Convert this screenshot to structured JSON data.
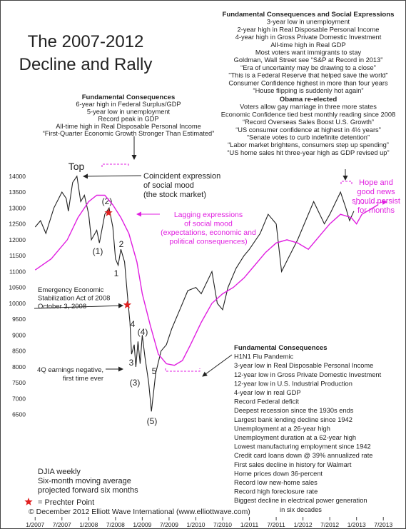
{
  "chart_data": {
    "type": "line",
    "title": [
      "The 2007-2012",
      "Decline and Rally"
    ],
    "xlim": [
      2006.85,
      2013.87
    ],
    "xticks": [
      {
        "value": 2007,
        "label": "1/2007"
      },
      {
        "value": 2007.5,
        "label": "7/2007"
      },
      {
        "value": 2008,
        "label": "1/2008"
      },
      {
        "value": 2008.5,
        "label": "7/2008"
      },
      {
        "value": 2009,
        "label": "1/2009"
      },
      {
        "value": 2009.5,
        "label": "7/2009"
      },
      {
        "value": 2010,
        "label": "1/2010"
      },
      {
        "value": 2010.5,
        "label": "7/2010"
      },
      {
        "value": 2011,
        "label": "1/2011"
      },
      {
        "value": 2011.5,
        "label": "7/2011"
      },
      {
        "value": 2012,
        "label": "1/2012"
      },
      {
        "value": 2012.5,
        "label": "7/2012"
      },
      {
        "value": 2013,
        "label": "1/2013"
      },
      {
        "value": 2013.5,
        "label": "7/2013"
      }
    ],
    "ylim": [
      6000,
      14400
    ],
    "yticks": [
      6500,
      7000,
      7500,
      8000,
      8500,
      9000,
      9500,
      10000,
      10500,
      11000,
      11500,
      12000,
      12500,
      13000,
      13500,
      14000
    ],
    "series": [
      {
        "name": "DJIA weekly",
        "color": "#222222",
        "x": [
          2007.0,
          2007.1,
          2007.2,
          2007.35,
          2007.5,
          2007.58,
          2007.62,
          2007.7,
          2007.78,
          2007.85,
          2007.92,
          2008.0,
          2008.05,
          2008.15,
          2008.2,
          2008.3,
          2008.38,
          2008.45,
          2008.5,
          2008.55,
          2008.6,
          2008.67,
          2008.72,
          2008.77,
          2008.8,
          2008.85,
          2008.88,
          2008.92,
          2008.96,
          2009.0,
          2009.05,
          2009.12,
          2009.17,
          2009.25,
          2009.35,
          2009.45,
          2009.55,
          2009.7,
          2009.85,
          2010.0,
          2010.1,
          2010.3,
          2010.4,
          2010.5,
          2010.6,
          2010.75,
          2010.9,
          2011.0,
          2011.2,
          2011.35,
          2011.5,
          2011.6,
          2011.75,
          2011.9,
          2012.0,
          2012.2,
          2012.4,
          2012.5,
          2012.7,
          2012.8,
          2012.87,
          2012.95
        ],
        "values": [
          12400,
          12600,
          12200,
          13000,
          13500,
          13300,
          12900,
          13800,
          14000,
          13200,
          13400,
          12800,
          12000,
          12300,
          11900,
          12800,
          13000,
          12400,
          11400,
          11200,
          11700,
          11300,
          10300,
          9400,
          8400,
          8700,
          8000,
          8800,
          8100,
          9000,
          8300,
          7500,
          6600,
          7800,
          8500,
          8700,
          9200,
          9800,
          10400,
          10500,
          10300,
          11000,
          10000,
          9800,
          10500,
          11100,
          11500,
          11700,
          12200,
          12800,
          12500,
          11000,
          11500,
          12000,
          12400,
          13200,
          12500,
          12800,
          13500,
          13000,
          12600,
          12900
        ]
      },
      {
        "name": "Six-month moving average",
        "color": "#e01ee0",
        "x": [
          2007.0,
          2007.3,
          2007.6,
          2007.8,
          2008.0,
          2008.15,
          2008.3,
          2008.45,
          2008.6,
          2008.75,
          2008.9,
          2009.0,
          2009.15,
          2009.3,
          2009.45,
          2009.6,
          2009.75,
          2009.9,
          2010.1,
          2010.3,
          2010.5,
          2010.7,
          2010.9,
          2011.1,
          2011.3,
          2011.5,
          2011.7,
          2011.9,
          2012.1,
          2012.3,
          2012.5,
          2012.7,
          2012.9,
          2013.0,
          2013.1,
          2013.25,
          2013.4
        ],
        "values": [
          11050,
          11400,
          12000,
          12700,
          13200,
          13400,
          13400,
          13100,
          12700,
          12200,
          11300,
          10300,
          9300,
          8400,
          8100,
          8050,
          8200,
          8700,
          9400,
          10000,
          10300,
          10500,
          10800,
          11200,
          11600,
          11900,
          12000,
          11900,
          11700,
          12100,
          12500,
          12800,
          12700,
          12500,
          12800,
          12950,
          13100
        ]
      }
    ],
    "legend_note": "projected forward six months",
    "markers": {
      "name": "= Prechter Point",
      "color": "#e02020",
      "x": [
        2008.37,
        2008.72
      ],
      "values": [
        12850,
        9950
      ]
    },
    "annotations": [
      "Top",
      "(1)",
      "(2)",
      "1",
      "2",
      "3",
      "4",
      "5",
      "(3)",
      "(4)",
      "(5)"
    ],
    "callouts": {
      "coincident": [
        "Coincident expression",
        "of social mood",
        "(the stock market)"
      ],
      "lagging": [
        "Lagging expressions",
        "of social mood",
        "(expectations, economic and",
        "political consequences)"
      ],
      "hope": [
        "Hope and",
        "good news",
        "should persist",
        "for months"
      ],
      "eesa": [
        "Emergency Economic",
        "Stabilization Act of 2008",
        "October 3, 2008"
      ],
      "earnings": [
        "4Q earnings negative,",
        "first time ever"
      ]
    },
    "note_blocks": [
      {
        "heading": "Fundamental Consequences",
        "lines": [
          "6-year high in Federal Surplus/GDP",
          "5-year low in unemployment",
          "Record peak in GDP",
          "All-time high in Real Disposable Personal Income",
          "“First-Quarter Economic Growth Stronger Than Estimated”"
        ]
      },
      {
        "heading": "Fundamental Consequences and Social Expressions",
        "lines": [
          "3-year low in unemployment",
          "2-year high in Real Disposable Personal Income",
          "4-year high in Gross Private Domestic Investment",
          "All-time high in Real GDP",
          "Most voters want immigrants to stay",
          "Goldman, Wall Street see “S&P at Record in 2013”",
          "“Era of uncertainty may be drawing to a close”",
          "“This is a Federal Reserve that helped save the world”",
          "Consumer Confidence highest in more than four years",
          "“House flipping is suddenly hot again”"
        ]
      },
      {
        "heading": "Obama re-elected",
        "lines": [
          "Voters allow gay marriage in three more states",
          "Economic Confidence tied best monthly reading since 2008",
          "“Record Overseas Sales Boost U.S. Growth”",
          "“US consumer confidence at highest in 4½ years”",
          "“Senate votes to curb indefinite detention”",
          "“Labor market brightens, consumers step up spending”",
          "“US home sales hit three-year high as GDP revised up”"
        ]
      },
      {
        "heading": "Fundamental Consequences",
        "lines": [
          "H1N1 Flu Pandemic",
          "3-year low in Real Disposable Personal Income",
          "12-year low in Gross Private Domestic Investment",
          "12-year low in U.S. Industrial Production",
          "4-year low in real GDP",
          "Record Federal deficit",
          "Deepest recession since the 1930s ends",
          "Largest bank lending decline since 1942",
          "Unemployment at a 26-year high",
          "Unemployment duration at a 62-year high",
          "Lowest manufacturing employment since 1942",
          "Credit card loans down @ 39% annualized rate",
          "First sales decline in history for Walmart",
          "Home prices down 36-percent",
          "Record low new-home sales",
          "Record high foreclosure rate",
          "Biggest decline in electrical power generation",
          "in six decades"
        ]
      }
    ],
    "footer": "© December 2012 Elliott Wave International (www.elliottwave.com)"
  }
}
